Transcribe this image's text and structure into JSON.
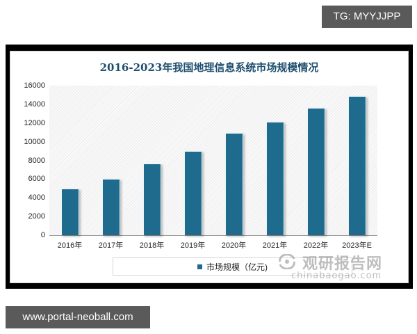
{
  "badges": {
    "top_right": "TG: MYYJJPP",
    "bottom_left": "www.portal-neoball.com"
  },
  "watermark": {
    "cn": "观研报告网",
    "en": "chinabaogao.com"
  },
  "colors": {
    "bar": "#1f6b8e",
    "title": "#1f4e6e",
    "badge_bg": "#5a5a5a",
    "frame": "#000000"
  },
  "chart_data": {
    "type": "bar",
    "title": "2016-2023年我国地理信息系统市场规模情况",
    "xlabel": "",
    "ylabel": "",
    "categories": [
      "2016年",
      "2017年",
      "2018年",
      "2019年",
      "2020年",
      "2021年",
      "2022年",
      "2023年E"
    ],
    "series": [
      {
        "name": "市场规模（亿元)",
        "values": [
          5000,
          6000,
          7650,
          9000,
          10950,
          12150,
          13600,
          14900
        ]
      }
    ],
    "yticks": [
      "0",
      "2000",
      "4000",
      "6000",
      "8000",
      "10000",
      "12000",
      "14000",
      "16000"
    ],
    "ylim": [
      0,
      16000
    ],
    "grid": false,
    "legend_position": "bottom"
  }
}
